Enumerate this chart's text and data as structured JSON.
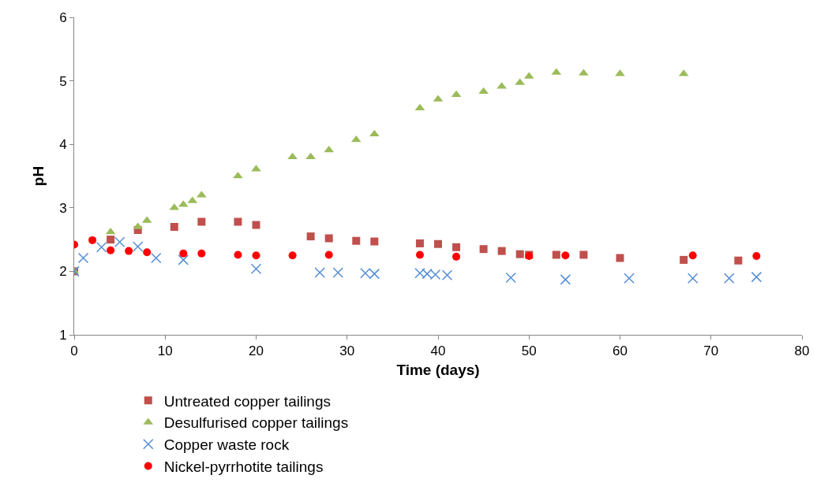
{
  "chart_data": {
    "type": "scatter",
    "xlabel": "Time (days)",
    "ylabel": "pH",
    "xlim": [
      0,
      80
    ],
    "xticks": [
      0,
      10,
      20,
      30,
      40,
      50,
      60,
      70,
      80
    ],
    "ylim": [
      1,
      6
    ],
    "yticks": [
      1,
      2,
      3,
      4,
      5,
      6
    ],
    "grid": false,
    "legend": "bottom",
    "series": [
      {
        "name": "Untreated copper tailings",
        "color": "#c0504d",
        "marker": "square",
        "x": [
          0,
          4,
          7,
          11,
          14,
          18,
          20,
          26,
          28,
          31,
          33,
          38,
          40,
          42,
          45,
          47,
          49,
          50,
          53,
          56,
          60,
          67,
          73
        ],
        "values": [
          2.0,
          2.5,
          2.65,
          2.7,
          2.78,
          2.78,
          2.73,
          2.55,
          2.52,
          2.48,
          2.47,
          2.44,
          2.43,
          2.38,
          2.35,
          2.32,
          2.27,
          2.26,
          2.26,
          2.26,
          2.21,
          2.18,
          2.17
        ]
      },
      {
        "name": "Desulfurised copper tailings",
        "color": "#9bbb59",
        "marker": "triangle",
        "x": [
          0,
          4,
          7,
          8,
          11,
          12,
          13,
          14,
          18,
          20,
          24,
          26,
          28,
          31,
          33,
          38,
          40,
          42,
          45,
          47,
          49,
          50,
          53,
          56,
          60,
          67
        ],
        "values": [
          2.0,
          2.62,
          2.7,
          2.8,
          3.0,
          3.05,
          3.11,
          3.2,
          3.5,
          3.61,
          3.8,
          3.8,
          3.91,
          4.07,
          4.16,
          4.57,
          4.71,
          4.78,
          4.83,
          4.91,
          4.97,
          5.07,
          5.13,
          5.12,
          5.11,
          5.11
        ]
      },
      {
        "name": "Copper waste rock",
        "color": "#558ed5",
        "marker": "cross",
        "x": [
          0,
          1,
          3,
          5,
          7,
          9,
          12,
          20,
          27,
          29,
          32,
          33,
          38,
          38.8,
          39.7,
          41,
          48,
          54,
          61,
          68,
          72,
          75
        ],
        "values": [
          2.0,
          2.21,
          2.38,
          2.46,
          2.39,
          2.21,
          2.18,
          2.04,
          1.98,
          1.98,
          1.97,
          1.96,
          1.97,
          1.96,
          1.95,
          1.94,
          1.9,
          1.87,
          1.89,
          1.89,
          1.89,
          1.91
        ]
      },
      {
        "name": "Nickel-pyrrhotite tailings",
        "color": "#ff0000",
        "marker": "circle",
        "x": [
          0,
          2,
          4,
          6,
          8,
          12,
          14,
          18,
          20,
          24,
          28,
          38,
          42,
          50,
          54,
          68,
          75
        ],
        "values": [
          2.42,
          2.49,
          2.33,
          2.32,
          2.3,
          2.28,
          2.28,
          2.26,
          2.25,
          2.25,
          2.26,
          2.26,
          2.23,
          2.24,
          2.25,
          2.25,
          2.24
        ]
      }
    ]
  }
}
